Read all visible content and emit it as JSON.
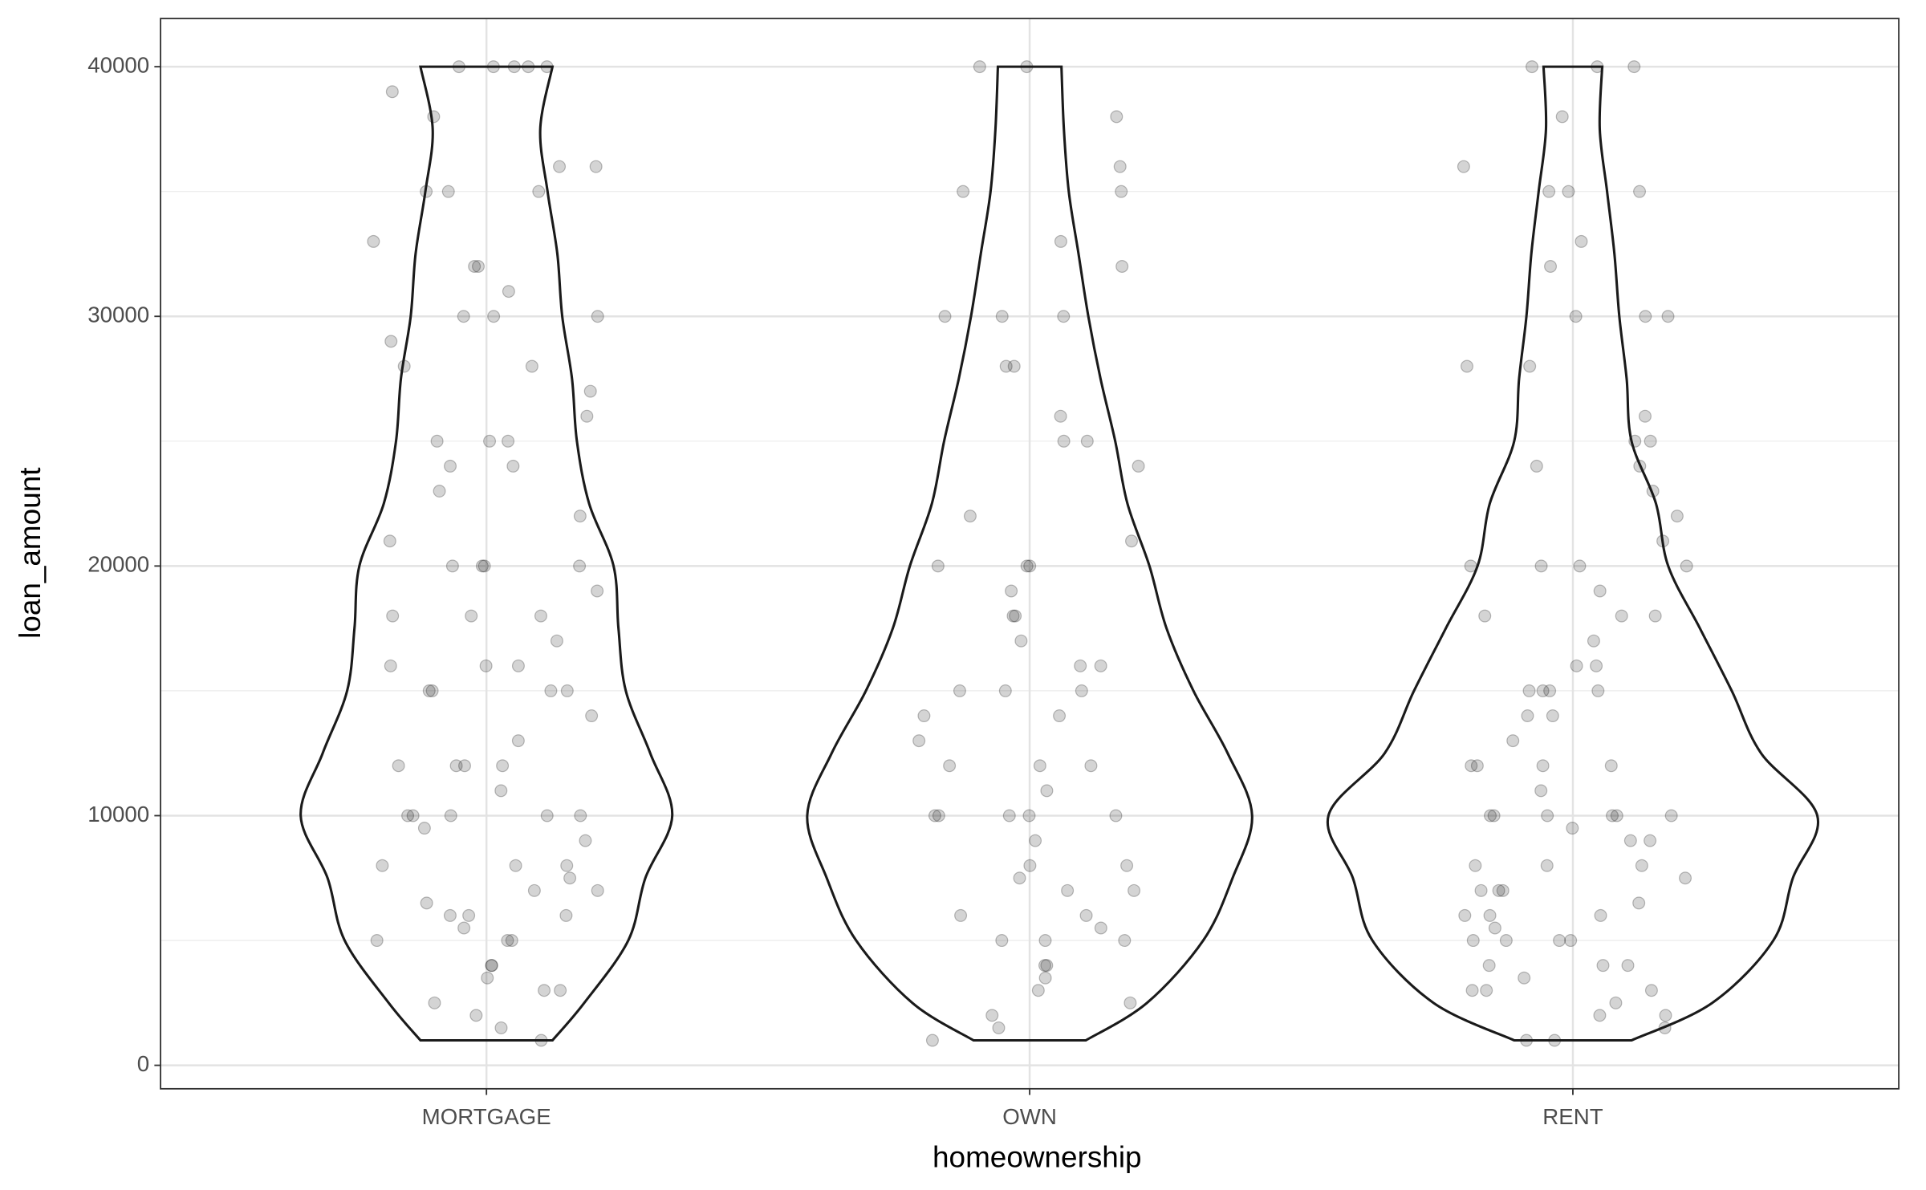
{
  "chart_data": {
    "type": "violin",
    "x_label": "homeownership",
    "y_label": "loan_amount",
    "categories": [
      "MORTGAGE",
      "OWN",
      "RENT"
    ],
    "ylim": [
      -940,
      41930
    ],
    "yticks": [
      0,
      10000,
      20000,
      30000,
      40000
    ],
    "minor_yticks": [
      5000,
      15000,
      25000,
      35000
    ],
    "grid": true,
    "point_color": "#000000",
    "line_color": "#1a1a1a",
    "density_at": [
      1000,
      2500,
      5000,
      7500,
      10000,
      12500,
      15000,
      17500,
      20000,
      22500,
      25000,
      27500,
      30000,
      32500,
      35000,
      37500,
      40000
    ],
    "violins": [
      {
        "density": [
          0.27,
          0.4,
          0.58,
          0.65,
          0.76,
          0.67,
          0.57,
          0.54,
          0.52,
          0.42,
          0.37,
          0.35,
          0.31,
          0.29,
          0.25,
          0.22,
          0.27
        ],
        "points": [
          1000,
          1500,
          2000,
          2500,
          3000,
          3000,
          3500,
          4000,
          4000,
          5000,
          5000,
          5000,
          5500,
          6000,
          6000,
          6000,
          6500,
          7000,
          7000,
          7500,
          8000,
          8000,
          8000,
          9000,
          9500,
          10000,
          10000,
          10000,
          10000,
          10000,
          11000,
          12000,
          12000,
          12000,
          12000,
          13000,
          14000,
          15000,
          15000,
          15000,
          15000,
          16000,
          16000,
          16000,
          17000,
          18000,
          18000,
          18000,
          19000,
          20000,
          20000,
          20000,
          20000,
          21000,
          22000,
          23000,
          24000,
          24000,
          25000,
          25000,
          25000,
          26000,
          27000,
          28000,
          28000,
          29000,
          30000,
          30000,
          30000,
          31000,
          32000,
          32000,
          33000,
          35000,
          35000,
          35000,
          36000,
          36000,
          38000,
          39000,
          40000,
          40000,
          40000,
          40000,
          40000
        ]
      },
      {
        "density": [
          0.23,
          0.48,
          0.71,
          0.83,
          0.91,
          0.81,
          0.67,
          0.56,
          0.49,
          0.4,
          0.35,
          0.29,
          0.24,
          0.2,
          0.16,
          0.14,
          0.13
        ],
        "points": [
          1000,
          1500,
          2000,
          2500,
          3000,
          3500,
          4000,
          4000,
          5000,
          5000,
          5000,
          5500,
          6000,
          6000,
          7000,
          7000,
          7500,
          8000,
          8000,
          9000,
          10000,
          10000,
          10000,
          10000,
          10000,
          11000,
          12000,
          12000,
          12000,
          13000,
          14000,
          14000,
          15000,
          15000,
          15000,
          16000,
          16000,
          17000,
          18000,
          18000,
          19000,
          20000,
          20000,
          20000,
          21000,
          22000,
          24000,
          25000,
          25000,
          26000,
          28000,
          28000,
          30000,
          30000,
          30000,
          32000,
          33000,
          35000,
          35000,
          36000,
          38000,
          40000,
          40000
        ]
      },
      {
        "density": [
          0.24,
          0.57,
          0.82,
          0.9,
          1.0,
          0.77,
          0.65,
          0.52,
          0.39,
          0.34,
          0.24,
          0.22,
          0.19,
          0.17,
          0.14,
          0.11,
          0.12
        ],
        "points": [
          1000,
          1000,
          1500,
          2000,
          2000,
          2500,
          3000,
          3000,
          3000,
          3500,
          4000,
          4000,
          4000,
          5000,
          5000,
          5000,
          5000,
          5500,
          6000,
          6000,
          6000,
          6500,
          7000,
          7000,
          7000,
          7500,
          8000,
          8000,
          8000,
          9000,
          9000,
          9500,
          10000,
          10000,
          10000,
          10000,
          10000,
          10000,
          11000,
          12000,
          12000,
          12000,
          12000,
          13000,
          14000,
          14000,
          15000,
          15000,
          15000,
          15000,
          16000,
          16000,
          17000,
          18000,
          18000,
          18000,
          19000,
          20000,
          20000,
          20000,
          20000,
          21000,
          22000,
          23000,
          24000,
          24000,
          25000,
          25000,
          26000,
          28000,
          28000,
          30000,
          30000,
          30000,
          32000,
          33000,
          35000,
          35000,
          35000,
          36000,
          38000,
          40000,
          40000,
          40000
        ]
      }
    ]
  }
}
